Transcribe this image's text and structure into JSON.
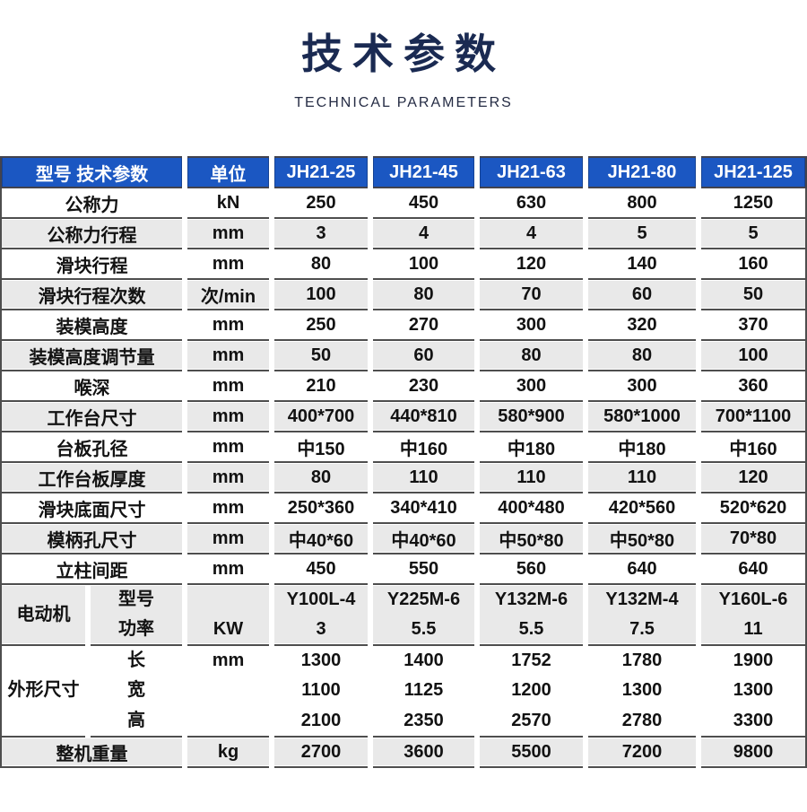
{
  "page": {
    "title": "技术参数",
    "subtitle": "TECHNICAL PARAMETERS"
  },
  "colors": {
    "header_bg": "#1b57c2",
    "header_text": "#ffffff",
    "title_navy": "#1a2a52",
    "stripe_gray": "#e9e9e9",
    "grid_line": "#4e4e4e"
  },
  "table": {
    "header": {
      "param_label": "型号 技术参数",
      "unit_label": "单位",
      "models": [
        "JH21-25",
        "JH21-45",
        "JH21-63",
        "JH21-80",
        "JH21-125"
      ]
    },
    "rows": [
      {
        "name": "公称力",
        "unit": "kN",
        "values": [
          "250",
          "450",
          "630",
          "800",
          "1250"
        ]
      },
      {
        "name": "公称力行程",
        "unit": "mm",
        "values": [
          "3",
          "4",
          "4",
          "5",
          "5"
        ]
      },
      {
        "name": "滑块行程",
        "unit": "mm",
        "values": [
          "80",
          "100",
          "120",
          "140",
          "160"
        ]
      },
      {
        "name": "滑块行程次数",
        "unit": "次/min",
        "values": [
          "100",
          "80",
          "70",
          "60",
          "50"
        ]
      },
      {
        "name": "装模高度",
        "unit": "mm",
        "values": [
          "250",
          "270",
          "300",
          "320",
          "370"
        ]
      },
      {
        "name": "装模高度调节量",
        "unit": "mm",
        "values": [
          "50",
          "60",
          "80",
          "80",
          "100"
        ]
      },
      {
        "name": "喉深",
        "unit": "mm",
        "values": [
          "210",
          "230",
          "300",
          "300",
          "360"
        ]
      },
      {
        "name": "工作台尺寸",
        "unit": "mm",
        "values": [
          "400*700",
          "440*810",
          "580*900",
          "580*1000",
          "700*1100"
        ]
      },
      {
        "name": "台板孔径",
        "unit": "mm",
        "values": [
          "中150",
          "中160",
          "中180",
          "中180",
          "中160"
        ]
      },
      {
        "name": "工作台板厚度",
        "unit": "mm",
        "values": [
          "80",
          "110",
          "110",
          "110",
          "120"
        ]
      },
      {
        "name": "滑块底面尺寸",
        "unit": "mm",
        "values": [
          "250*360",
          "340*410",
          "400*480",
          "420*560",
          "520*620"
        ]
      },
      {
        "name": "模柄孔尺寸",
        "unit": "mm",
        "values": [
          "中40*60",
          "中40*60",
          "中50*80",
          "中50*80",
          "70*80"
        ]
      },
      {
        "name": "立柱间距",
        "unit": "mm",
        "values": [
          "450",
          "550",
          "560",
          "640",
          "640"
        ]
      }
    ],
    "motor": {
      "group_label": "电动机",
      "sub_label_model": "型号",
      "sub_label_power": "功率",
      "unit": "KW",
      "model_values": [
        "Y100L-4",
        "Y225M-6",
        "Y132M-6",
        "Y132M-4",
        "Y160L-6"
      ],
      "power_values": [
        "3",
        "5.5",
        "5.5",
        "7.5",
        "11"
      ]
    },
    "dimensions": {
      "group_label": "外形尺寸",
      "sub_label_length": "长",
      "sub_label_width": "宽",
      "sub_label_height": "高",
      "unit": "mm",
      "length_values": [
        "1300",
        "1400",
        "1752",
        "1780",
        "1900"
      ],
      "width_values": [
        "1100",
        "1125",
        "1200",
        "1300",
        "1300"
      ],
      "height_values": [
        "2100",
        "2350",
        "2570",
        "2780",
        "3300"
      ]
    },
    "weight": {
      "name": "整机重量",
      "unit": "kg",
      "values": [
        "2700",
        "3600",
        "5500",
        "7200",
        "9800"
      ]
    }
  }
}
